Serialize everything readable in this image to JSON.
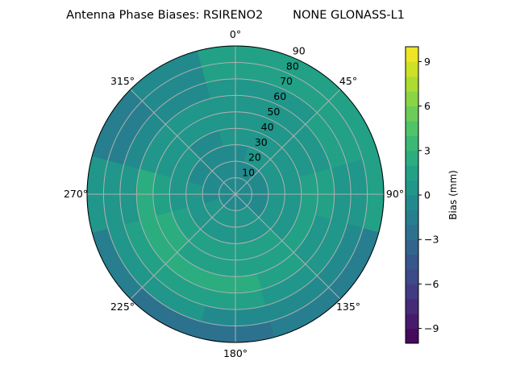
{
  "chart_data": {
    "type": "heatmap",
    "subtype": "polar-contour",
    "title": "Antenna Phase Biases: RSIRENO2        NONE GLONASS-L1",
    "azimuth_ticks": [
      "0°",
      "45°",
      "90°",
      "135°",
      "180°",
      "225°",
      "270°",
      "315°"
    ],
    "azimuth_tick_values": [
      0,
      45,
      90,
      135,
      180,
      225,
      270,
      315
    ],
    "radial_ticks": [
      "10",
      "20",
      "30",
      "40",
      "50",
      "60",
      "70",
      "80",
      "90"
    ],
    "radial_tick_values": [
      10,
      20,
      30,
      40,
      50,
      60,
      70,
      80,
      90
    ],
    "radial_range": [
      0,
      90
    ],
    "azimuth_direction": "clockwise, 0 at top",
    "grid": true,
    "colormap": "viridis",
    "colorbar": {
      "label": "Bias (mm)",
      "range": [
        -10,
        10
      ],
      "levels": 20,
      "ticks": [
        "−9",
        "−6",
        "−3",
        "0",
        "3",
        "6",
        "9"
      ],
      "tick_values": [
        -9,
        -6,
        -3,
        0,
        3,
        6,
        9
      ]
    },
    "grid_azimuths": [
      0,
      30,
      60,
      90,
      120,
      150,
      180,
      210,
      240,
      270,
      300,
      330
    ],
    "grid_zeniths": [
      5,
      15,
      25,
      35,
      45,
      55,
      65,
      75,
      85
    ],
    "values": [
      [
        -0.5,
        -0.5,
        -0.5,
        0,
        0.5,
        0.5,
        0.5,
        1,
        1.5
      ],
      [
        -0.5,
        -0.5,
        0,
        0,
        0.5,
        0.5,
        0.5,
        1,
        1
      ],
      [
        -0.5,
        -0.5,
        0,
        0.5,
        0.5,
        0.5,
        1,
        1.5,
        1.5
      ],
      [
        -0.5,
        -0.5,
        0,
        0.5,
        1.5,
        1,
        0.5,
        0.5,
        1.5
      ],
      [
        -0.5,
        -0.5,
        0,
        0.5,
        1,
        0.5,
        0,
        -0.5,
        -1.5
      ],
      [
        -0.5,
        0,
        0.5,
        1,
        1.5,
        1.5,
        0.5,
        -0.5,
        -2
      ],
      [
        -0.5,
        0,
        0.5,
        1,
        1.5,
        2,
        1,
        -0.5,
        -2.5
      ],
      [
        -0.5,
        0,
        0.5,
        1,
        1.5,
        2,
        1.5,
        0,
        -2.5
      ],
      [
        -0.5,
        0,
        0.5,
        1,
        2,
        2,
        1,
        0,
        -1.5
      ],
      [
        -0.5,
        -0.5,
        0,
        0.5,
        1.5,
        2,
        0.5,
        0,
        0.5
      ],
      [
        -0.5,
        -0.5,
        -0.5,
        0,
        0.5,
        0,
        -0.5,
        -1.5,
        -2
      ],
      [
        -0.5,
        -0.5,
        -1,
        -0.5,
        0,
        0,
        -0.5,
        -1,
        -1
      ]
    ]
  }
}
